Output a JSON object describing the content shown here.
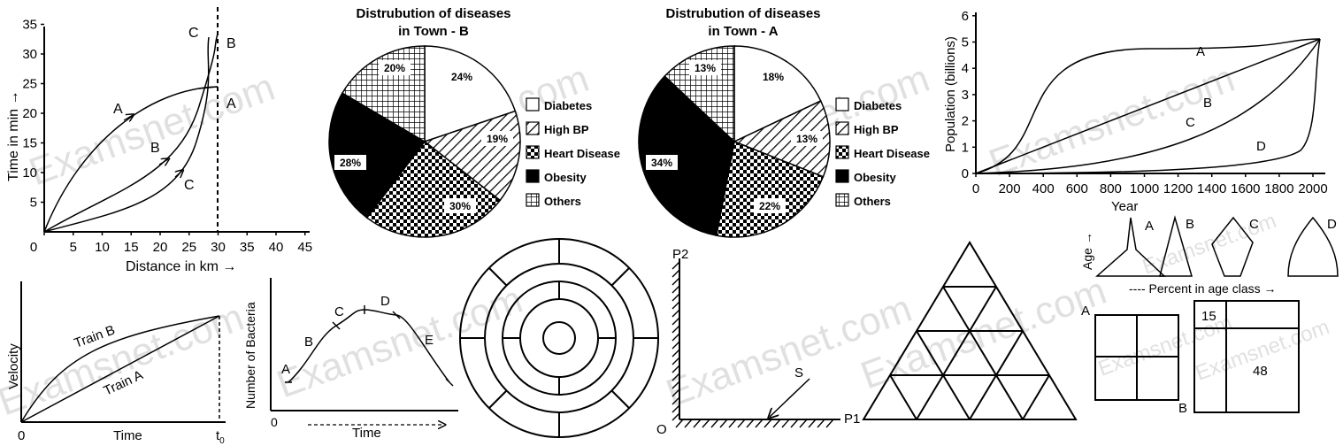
{
  "watermark": "Examsnet.com",
  "distance_time": {
    "ylabel": "Time in min →",
    "xlabel": "Distance in km →",
    "y_ticks": [
      "5",
      "10",
      "15",
      "20",
      "25",
      "30",
      "35"
    ],
    "x_ticks": [
      "0",
      "5",
      "10",
      "15",
      "20",
      "25",
      "30",
      "35",
      "40",
      "45"
    ],
    "curve_labels": {
      "A_mid": "A",
      "B_mid": "B",
      "C_mid": "C",
      "C_top": "C",
      "B_top": "B",
      "A_right": "A"
    }
  },
  "pie_b": {
    "title_line1": "Distrubution of diseases",
    "title_line2": "in Town - B",
    "slices": [
      {
        "label": "24%",
        "value": 24,
        "pattern": "white"
      },
      {
        "label": "19%",
        "value": 19,
        "pattern": "hatch"
      },
      {
        "label": "30%",
        "value": 30,
        "pattern": "check"
      },
      {
        "label": "28%",
        "value": 28,
        "pattern": "black"
      },
      {
        "label": "20%",
        "value": 20,
        "pattern": "grid"
      }
    ]
  },
  "pie_a": {
    "title_line1": "Distrubution of diseases",
    "title_line2": "in Town - A",
    "slices": [
      {
        "label": "18%",
        "value": 18,
        "pattern": "white"
      },
      {
        "label": "13%",
        "value": 13,
        "pattern": "hatch"
      },
      {
        "label": "22%",
        "value": 22,
        "pattern": "check"
      },
      {
        "label": "34%",
        "value": 34,
        "pattern": "black"
      },
      {
        "label": "13%",
        "value": 13,
        "pattern": "grid"
      }
    ]
  },
  "legend": [
    "Diabetes",
    "High BP",
    "Heart Disease",
    "Obesity",
    "Others"
  ],
  "population": {
    "ylabel": "Population (billions)",
    "xlabel": "Year",
    "y_ticks": [
      "0",
      "1",
      "2",
      "3",
      "4",
      "5",
      "6"
    ],
    "x_ticks": [
      "0",
      "200",
      "400",
      "600",
      "800",
      "1000",
      "1200",
      "1400",
      "1600",
      "1800",
      "2000"
    ],
    "curve_labels": [
      "A",
      "B",
      "C",
      "D"
    ]
  },
  "age_shapes": {
    "ylabel": "Age →",
    "xlabel": "---- Percent in age class →",
    "labels": [
      "A",
      "B",
      "C",
      "D"
    ]
  },
  "velocity": {
    "ylabel": "Velocity",
    "xlabel": "Time",
    "origin": "0",
    "t_label": "t",
    "t_sub": "0",
    "train_b": "Train B",
    "train_a": "Train A"
  },
  "bacteria": {
    "ylabel": "Number of Bacteria",
    "xlabel": "Time",
    "origin": "0",
    "phases": [
      "A",
      "B",
      "C",
      "D",
      "E"
    ]
  },
  "mirror": {
    "p2": "P2",
    "p1": "P1",
    "o": "O",
    "s": "S"
  },
  "squares": {
    "a": "A",
    "b": "B",
    "v15": "15",
    "v48": "48"
  }
}
